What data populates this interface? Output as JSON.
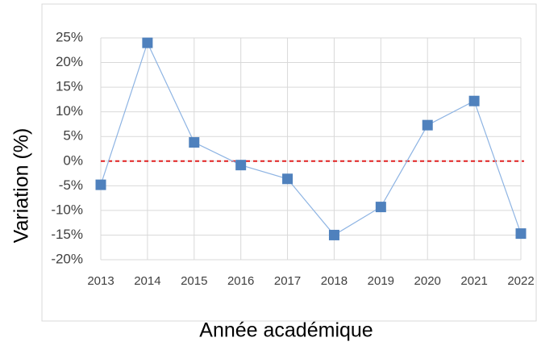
{
  "chart_data": {
    "type": "line",
    "x_label": "Année académique",
    "y_label": "Variation (%)",
    "categories": [
      "2013",
      "2014",
      "2015",
      "2016",
      "2017",
      "2018",
      "2019",
      "2020",
      "2021",
      "2022"
    ],
    "series": [
      {
        "name": "Variation",
        "color": "#4f81bd",
        "line_color": "#8eb4e3",
        "values": [
          -4.8,
          24,
          3.8,
          -0.8,
          -3.6,
          -15,
          -9.3,
          7.3,
          12.2,
          -14.7
        ]
      }
    ],
    "ylim": [
      -20,
      25
    ],
    "yticks": [
      {
        "value": -20,
        "label": "-20%"
      },
      {
        "value": -15,
        "label": "-15%"
      },
      {
        "value": -10,
        "label": "-10%"
      },
      {
        "value": -5,
        "label": "-5%"
      },
      {
        "value": 0,
        "label": "0%"
      },
      {
        "value": 5,
        "label": "5%"
      },
      {
        "value": 10,
        "label": "10%"
      },
      {
        "value": 15,
        "label": "15%"
      },
      {
        "value": 20,
        "label": "20%"
      },
      {
        "value": 25,
        "label": "25%"
      }
    ],
    "grid": true,
    "reference_line": {
      "value": 0,
      "color": "#e02020"
    }
  }
}
